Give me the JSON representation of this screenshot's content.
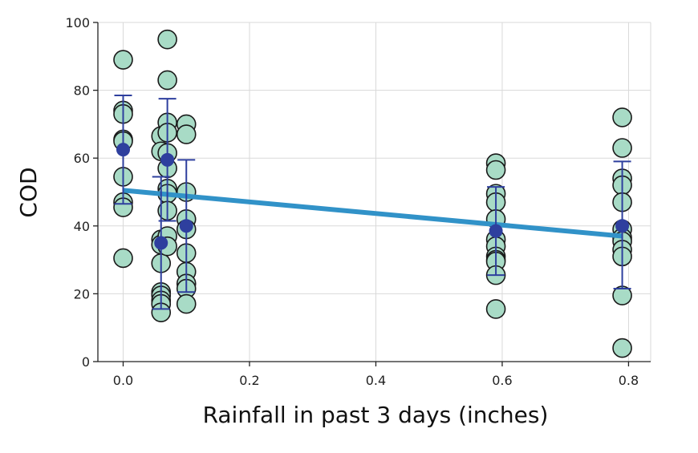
{
  "chart_data": {
    "type": "scatter",
    "title": "",
    "xlabel": "Rainfall in past 3 days (inches)",
    "ylabel": "COD",
    "xlim": [
      -0.04,
      0.835
    ],
    "ylim": [
      0,
      100
    ],
    "grid": true,
    "x_ticks": [
      0.0,
      0.2,
      0.4,
      0.6,
      0.8
    ],
    "x_tick_labels": [
      "0.0",
      "0.2",
      "0.4",
      "0.6",
      "0.8"
    ],
    "y_ticks": [
      0,
      20,
      40,
      60,
      80,
      100
    ],
    "y_tick_labels": [
      "0",
      "20",
      "40",
      "60",
      "80",
      "100"
    ],
    "colors": {
      "points_fill": "#a8dbc6",
      "points_stroke": "#1a1a1a",
      "mean_marker": "#2e3f9e",
      "error_bar": "#2e3f9e",
      "trend_line": "#3192c8",
      "grid": "#d9d9d9",
      "axis": "#222222"
    },
    "points": [
      {
        "x": 0.0,
        "y": [
          89,
          74,
          73,
          65.5,
          65,
          54.5,
          47,
          45.5,
          30.5
        ]
      },
      {
        "x": 0.06,
        "y": [
          66.5,
          62,
          36,
          34.5,
          29,
          20.5,
          19.5,
          18,
          17,
          14.5
        ]
      },
      {
        "x": 0.07,
        "y": [
          95,
          83,
          70.5,
          67.5,
          61.5,
          57,
          51,
          49.5,
          44.5,
          37,
          34
        ]
      },
      {
        "x": 0.1,
        "y": [
          70,
          67,
          50,
          42,
          39,
          32,
          26.5,
          23,
          21.5,
          17
        ]
      },
      {
        "x": 0.59,
        "y": [
          58.5,
          56.5,
          49.5,
          47,
          42,
          36,
          34,
          31,
          30,
          29.5,
          25.5,
          15.5
        ]
      },
      {
        "x": 0.79,
        "y": [
          72,
          63,
          54,
          52,
          47,
          39,
          36.5,
          35.5,
          33,
          31,
          19.5,
          4
        ]
      }
    ],
    "mean_series": [
      {
        "x": 0.0,
        "mean": 62.5,
        "lower": 46.5,
        "upper": 78.5
      },
      {
        "x": 0.06,
        "mean": 35,
        "lower": 15.5,
        "upper": 54.5
      },
      {
        "x": 0.07,
        "mean": 59.5,
        "lower": 41.5,
        "upper": 77.5
      },
      {
        "x": 0.1,
        "mean": 40,
        "lower": 20.5,
        "upper": 59.5
      },
      {
        "x": 0.59,
        "mean": 38.5,
        "lower": 25.5,
        "upper": 51.5
      },
      {
        "x": 0.79,
        "mean": 40,
        "lower": 21.5,
        "upper": 59
      }
    ],
    "trend_line": {
      "x": [
        0.0,
        0.79
      ],
      "y": [
        50.5,
        37
      ]
    }
  }
}
